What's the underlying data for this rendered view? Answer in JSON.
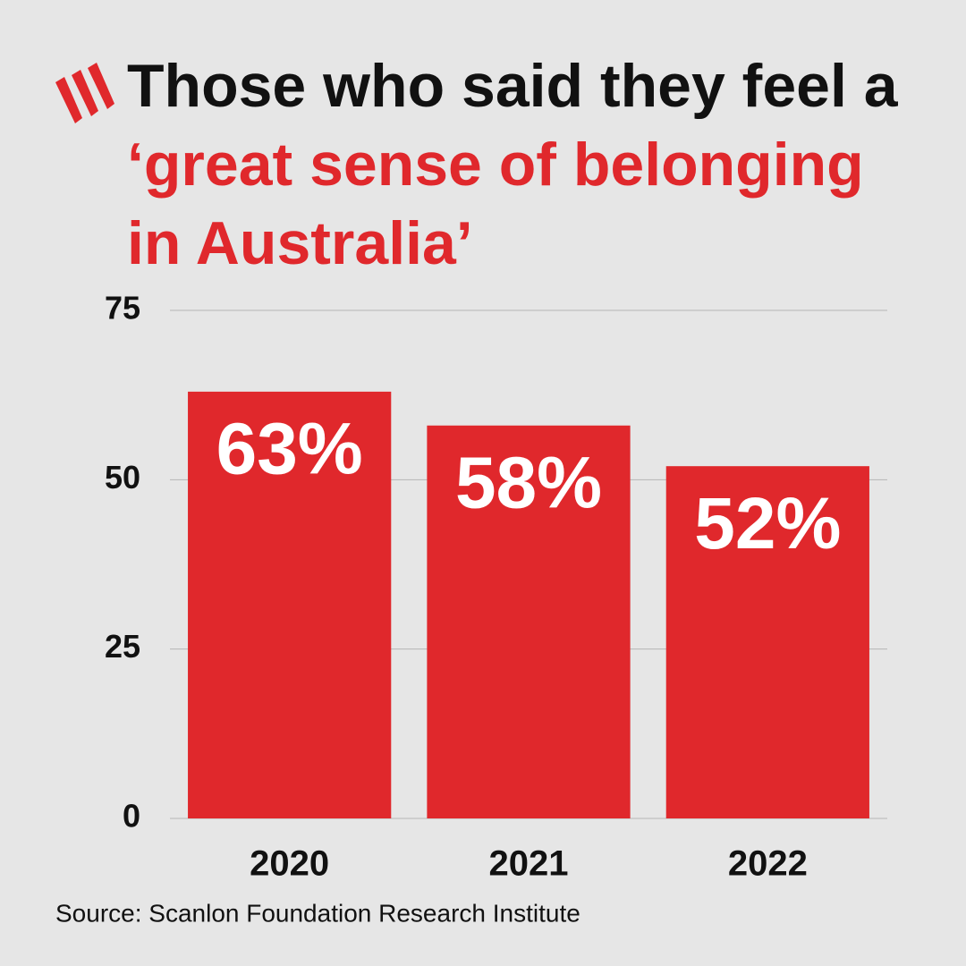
{
  "chart_data": {
    "type": "bar",
    "title": "Those who said they feel a",
    "title_highlight": "‘great sense of belonging in Australia’",
    "categories": [
      "2020",
      "2021",
      "2022"
    ],
    "values": [
      63,
      58,
      52
    ],
    "value_labels": [
      "63%",
      "58%",
      "52%"
    ],
    "color": "#e0282c",
    "highlight_color": "#e0282c",
    "ylim": [
      0,
      75
    ],
    "yticks": [
      0,
      25,
      50,
      75
    ],
    "grid": true,
    "source": "Source: Scanlon Foundation Research Institute"
  }
}
